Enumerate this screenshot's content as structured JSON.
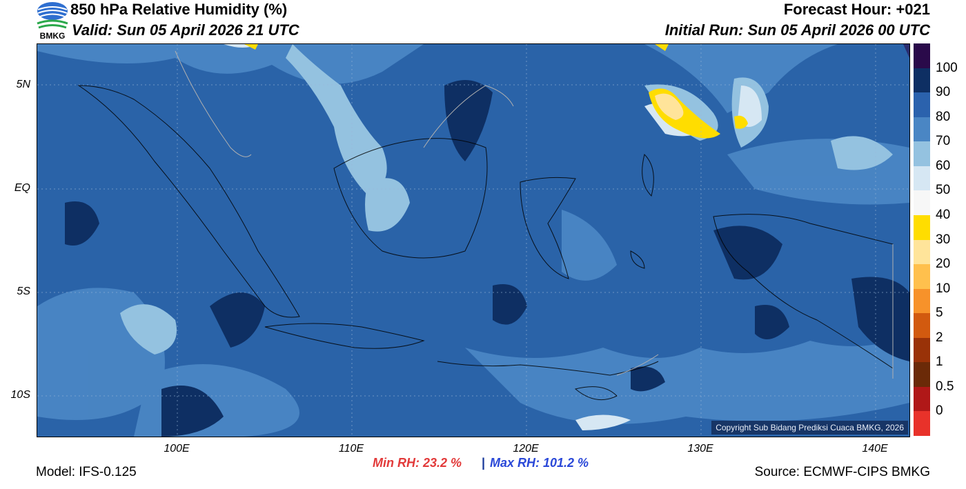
{
  "header": {
    "title": "850 hPa Relative Humidity (%)",
    "valid": "Valid: Sun 05 April 2026 21 UTC",
    "forecast_hour": "Forecast Hour: +021",
    "initial_run": "Initial Run: Sun 05 April 2026 00 UTC"
  },
  "logo": {
    "text": "BMKG",
    "icon": "bmkg-logo-icon"
  },
  "map": {
    "lat_labels": [
      "5N",
      "EQ",
      "5S",
      "10S"
    ],
    "lon_labels": [
      "100E",
      "110E",
      "120E",
      "130E",
      "140E"
    ],
    "copyright": "Copyright Sub Bidang Prediksi Cuaca BMKG, 2026"
  },
  "colorbar": {
    "labels": [
      "100",
      "90",
      "80",
      "70",
      "60",
      "50",
      "40",
      "30",
      "20",
      "10",
      "5",
      "2",
      "1",
      "0.5",
      "0"
    ],
    "colors": [
      "#2a0a4a",
      "#0e2f63",
      "#2b62ad",
      "#4a86c4",
      "#94c2e0",
      "#d6e7f3",
      "#f7f7f7",
      "#ffdd00",
      "#ffe49a",
      "#ffc04d",
      "#f7922a",
      "#d25a0f",
      "#993208",
      "#6b2a08",
      "#b01818",
      "#e8322a"
    ]
  },
  "stats": {
    "min_rh": "Min RH:  23.2 %",
    "separator": "|",
    "max_rh": "Max RH: 101.2 %"
  },
  "footer": {
    "model": "Model: IFS-0.125",
    "source": "Source: ECMWF-CIPS BMKG"
  }
}
